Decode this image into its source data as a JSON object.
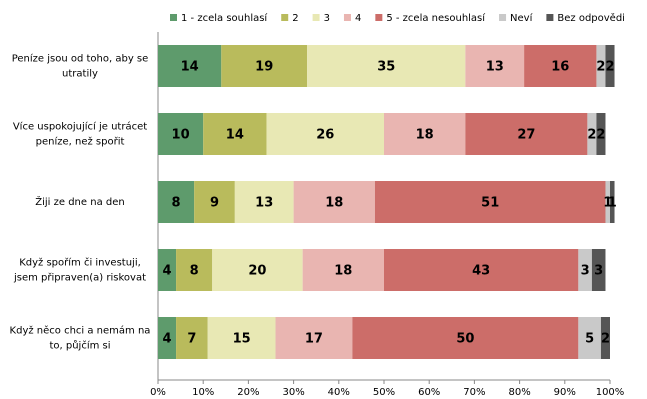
{
  "chart_data": {
    "type": "stacked-barh",
    "categories": [
      [
        "Peníze jsou od toho, aby se",
        "utratily"
      ],
      [
        "Více uspokojující  je utrácet",
        "peníze, než spořit"
      ],
      [
        "Žiji ze dne na den"
      ],
      [
        "Když spořím či investuji,",
        "jsem připraven(a) riskovat"
      ],
      [
        "Když něco chci a nemám na",
        "to,  půjčím si"
      ]
    ],
    "series": [
      {
        "name": "1 - zcela souhlasí",
        "color": "#5e9b6c",
        "values": [
          14,
          10,
          8,
          4,
          4
        ]
      },
      {
        "name": "2",
        "color": "#b9bb5c",
        "values": [
          19,
          14,
          9,
          8,
          7
        ]
      },
      {
        "name": "3",
        "color": "#e8e8b4",
        "values": [
          35,
          26,
          13,
          20,
          15
        ]
      },
      {
        "name": "4",
        "color": "#e9b5b1",
        "values": [
          13,
          18,
          18,
          18,
          17
        ]
      },
      {
        "name": "5 - zcela nesouhlasí",
        "color": "#cc6d69",
        "values": [
          16,
          27,
          51,
          43,
          50
        ]
      },
      {
        "name": "Neví",
        "color": "#c9c9c9",
        "values": [
          2,
          2,
          1,
          3,
          5
        ]
      },
      {
        "name": "Bez odpovědi",
        "color": "#555555",
        "values": [
          2,
          2,
          1,
          3,
          2
        ]
      }
    ],
    "xlim": [
      0,
      100
    ],
    "xticks": [
      {
        "value": 0,
        "label": "0%"
      },
      {
        "value": 10,
        "label": "10%"
      },
      {
        "value": 20,
        "label": "20%"
      },
      {
        "value": 30,
        "label": "30%"
      },
      {
        "value": 40,
        "label": "40%"
      },
      {
        "value": 50,
        "label": "50%"
      },
      {
        "value": 60,
        "label": "60%"
      },
      {
        "value": 70,
        "label": "70%"
      },
      {
        "value": 80,
        "label": "80%"
      },
      {
        "value": 90,
        "label": "90%"
      },
      {
        "value": 100,
        "label": "100%"
      }
    ]
  }
}
